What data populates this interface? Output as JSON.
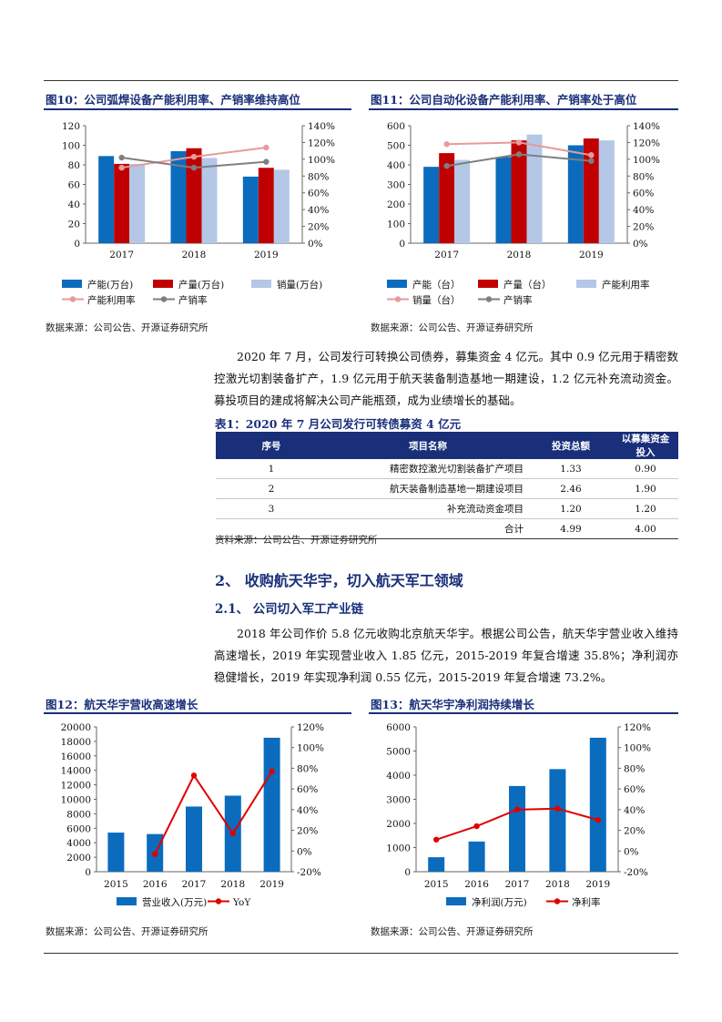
{
  "figures": {
    "fig10": {
      "title": "图10：公司弧焊设备产能利用率、产销率维持高位",
      "source": "数据来源：公司公告、开源证券研究所"
    },
    "fig11": {
      "title": "图11：公司自动化设备产能利用率、产销率处于高位",
      "source": "数据来源：公司公告、开源证券研究所"
    },
    "fig12": {
      "title": "图12：航天华宇营收高速增长",
      "source": "数据来源：公司公告、开源证券研究所"
    },
    "fig13": {
      "title": "图13：航天华宇净利润持续增长",
      "source": "数据来源：公司公告、开源证券研究所"
    }
  },
  "paragraphs": {
    "p1": "2020 年 7 月，公司发行可转换公司债券，募集资金 4 亿元。其中 0.9 亿元用于精密数控激光切割装备扩产，1.9 亿元用于航天装备制造基地一期建设，1.2 亿元补充流动资金。募投项目的建成将解决公司产能瓶颈，成为业绩增长的基础。",
    "p2": "2018 年公司作价 5.8 亿元收购北京航天华宇。根据公司公告，航天华宇营业收入维持高速增长，2019 年实现营业收入 1.85 亿元，2015-2019 年复合增速 35.8%；净利润亦稳健增长，2019 年实现净利润 0.55 亿元，2015-2019 年复合增速 73.2%。"
  },
  "table1": {
    "title": "表1：2020 年 7 月公司发行可转债募资 4 亿元",
    "headers": [
      "序号",
      "项目名称",
      "投资总额",
      "以募集资金投入"
    ],
    "rows": [
      [
        "1",
        "精密数控激光切割装备扩产项目",
        "1.33",
        "0.90"
      ],
      [
        "2",
        "航天装备制造基地一期建设项目",
        "2.46",
        "1.90"
      ],
      [
        "3",
        "补充流动资金项目",
        "1.20",
        "1.20"
      ],
      [
        "",
        "合计",
        "4.99",
        "4.00"
      ]
    ],
    "source": "资料来源：公司公告、开源证券研究所"
  },
  "headings": {
    "h2": "2、 收购航天华宇，切入航天军工领域",
    "h3": "2.1、 公司切入军工产业链"
  },
  "colors": {
    "blue": "#0b6cbd",
    "red": "#c00000",
    "light_blue": "#b4c7e7",
    "pink": "#e89a9a",
    "gray": "#7f7f7f",
    "navy": "#1a2f7a"
  },
  "chart_data": [
    {
      "id": "fig10",
      "type": "bar",
      "categories": [
        "2017",
        "2018",
        "2019"
      ],
      "left_ticks": [
        "0",
        "20",
        "40",
        "60",
        "80",
        "100",
        "120"
      ],
      "right_ticks": [
        "0%",
        "20%",
        "40%",
        "60%",
        "80%",
        "100%",
        "120%",
        "140%"
      ],
      "ylim": [
        0,
        120
      ],
      "y2lim": [
        0,
        140
      ],
      "series": [
        {
          "name": "产能(万台)",
          "type": "bar",
          "axis": "left",
          "color": "#0b6cbd",
          "values": [
            89,
            94,
            68
          ]
        },
        {
          "name": "产量(万台)",
          "type": "bar",
          "axis": "left",
          "color": "#c00000",
          "values": [
            81,
            97,
            77
          ]
        },
        {
          "name": "销量(万台)",
          "type": "bar",
          "axis": "left",
          "color": "#b4c7e7",
          "values": [
            81,
            87,
            75
          ]
        },
        {
          "name": "产能利用率",
          "type": "line",
          "axis": "right",
          "color": "#e89a9a",
          "values": [
            90,
            103,
            114
          ]
        },
        {
          "name": "产销率",
          "type": "line",
          "axis": "right",
          "color": "#7f7f7f",
          "values": [
            102,
            90,
            97
          ]
        }
      ],
      "legend_rows": [
        [
          0,
          1,
          2
        ],
        [
          3,
          4
        ]
      ]
    },
    {
      "id": "fig11",
      "type": "bar",
      "categories": [
        "2017",
        "2018",
        "2019"
      ],
      "left_ticks": [
        "0",
        "100",
        "200",
        "300",
        "400",
        "500",
        "600"
      ],
      "right_ticks": [
        "0%",
        "20%",
        "40%",
        "60%",
        "80%",
        "100%",
        "120%",
        "140%"
      ],
      "ylim": [
        0,
        600
      ],
      "y2lim": [
        0,
        140
      ],
      "series": [
        {
          "name": "产能（台）",
          "type": "bar",
          "axis": "left",
          "color": "#0b6cbd",
          "values": [
            390,
            440,
            500
          ]
        },
        {
          "name": "产量（台）",
          "type": "bar",
          "axis": "left",
          "color": "#c00000",
          "values": [
            460,
            525,
            535
          ]
        },
        {
          "name": "产能利用率",
          "type": "bar",
          "axis": "left",
          "color": "#b4c7e7",
          "values": [
            425,
            555,
            525
          ]
        },
        {
          "name": "销量（台）",
          "type": "line",
          "axis": "right",
          "color": "#e89a9a",
          "values": [
            118,
            120,
            105
          ]
        },
        {
          "name": "产销率",
          "type": "line",
          "axis": "right",
          "color": "#7f7f7f",
          "values": [
            92,
            106,
            98
          ]
        }
      ],
      "legend_rows": [
        [
          0,
          1,
          2
        ],
        [
          3,
          4
        ]
      ]
    },
    {
      "id": "fig12",
      "type": "bar",
      "categories": [
        "2015",
        "2016",
        "2017",
        "2018",
        "2019"
      ],
      "left_ticks": [
        "0",
        "2000",
        "4000",
        "6000",
        "8000",
        "10000",
        "12000",
        "14000",
        "16000",
        "18000",
        "20000"
      ],
      "right_ticks": [
        "-20%",
        "0%",
        "20%",
        "40%",
        "60%",
        "80%",
        "100%",
        "120%"
      ],
      "ylim": [
        0,
        20000
      ],
      "y2lim": [
        -20,
        120
      ],
      "series": [
        {
          "name": "营业收入(万元)",
          "type": "bar",
          "axis": "left",
          "color": "#0b6cbd",
          "values": [
            5400,
            5200,
            9000,
            10500,
            18500
          ]
        },
        {
          "name": "YoY",
          "type": "line",
          "axis": "right",
          "color": "#e00000",
          "values": [
            null,
            -3,
            73,
            17,
            77
          ]
        }
      ],
      "legend_rows": [
        [
          0,
          1
        ]
      ]
    },
    {
      "id": "fig13",
      "type": "bar",
      "categories": [
        "2015",
        "2016",
        "2017",
        "2018",
        "2019"
      ],
      "left_ticks": [
        "0",
        "1000",
        "2000",
        "3000",
        "4000",
        "5000",
        "6000"
      ],
      "right_ticks": [
        "-20%",
        "0%",
        "20%",
        "40%",
        "60%",
        "80%",
        "100%",
        "120%"
      ],
      "ylim": [
        0,
        6000
      ],
      "y2lim": [
        -20,
        120
      ],
      "series": [
        {
          "name": "净利润(万元)",
          "type": "bar",
          "axis": "left",
          "color": "#0b6cbd",
          "values": [
            600,
            1250,
            3550,
            4250,
            5550
          ]
        },
        {
          "name": "净利率",
          "type": "line",
          "axis": "right",
          "color": "#e00000",
          "values": [
            11,
            24,
            40,
            41,
            30
          ]
        }
      ],
      "legend_rows": [
        [
          0,
          1
        ]
      ]
    }
  ]
}
